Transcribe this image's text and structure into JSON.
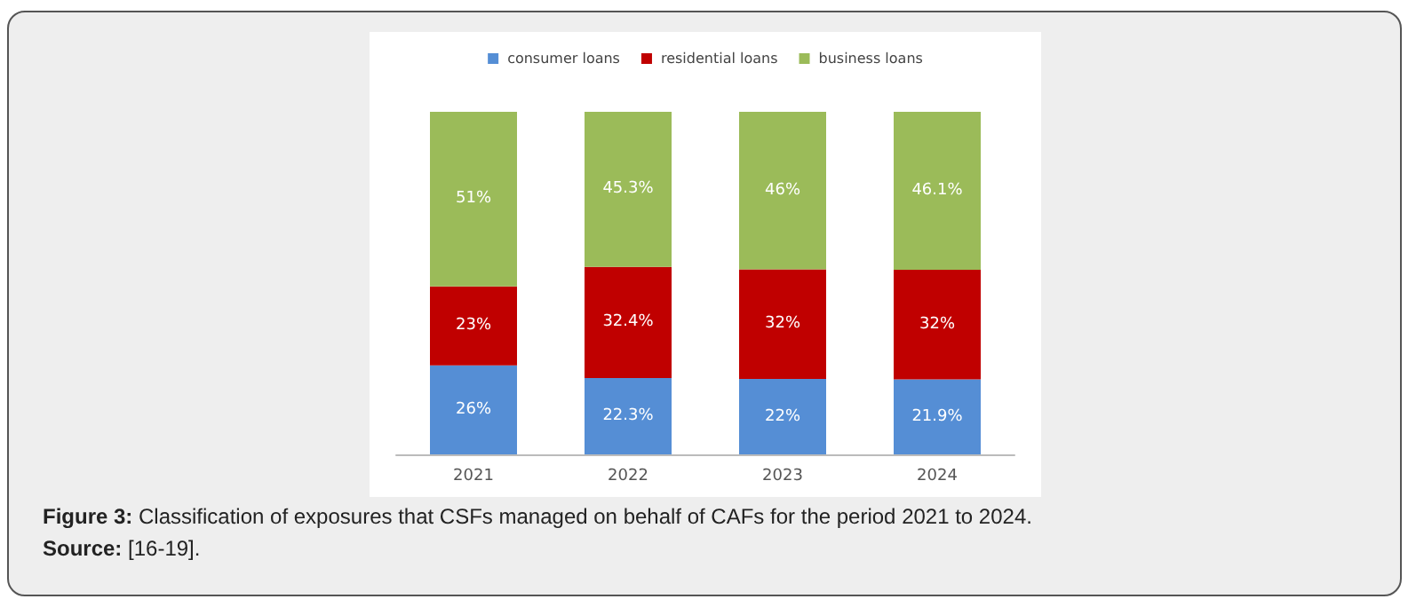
{
  "chart_data": {
    "type": "bar",
    "stacked": true,
    "legend": "top",
    "categories": [
      "2021",
      "2022",
      "2023",
      "2024"
    ],
    "series": [
      {
        "name": "consumer loans",
        "color": "#558ed5",
        "values": [
          26,
          22.3,
          22,
          21.9
        ],
        "value_labels": [
          "26%",
          "22.3%",
          "22%",
          "21.9%"
        ]
      },
      {
        "name": "residential loans",
        "color": "#c00000",
        "values": [
          23,
          32.4,
          32,
          32
        ],
        "value_labels": [
          "23%",
          "32.4%",
          "32%",
          "32%"
        ]
      },
      {
        "name": "business loans",
        "color": "#9bbb59",
        "values": [
          51,
          45.3,
          46,
          46.1
        ],
        "value_labels": [
          "51%",
          "45.3%",
          "46%",
          "46.1%"
        ]
      }
    ],
    "annotations": [
      "Figure 3: Classification of exposures that CSFs managed on behalf of CAFs for the period 2021 to 2024.",
      "Source: [16-19]."
    ]
  }
}
